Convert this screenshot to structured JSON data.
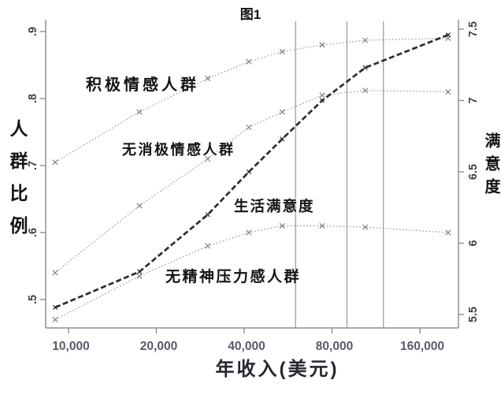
{
  "chart_data": {
    "type": "line",
    "title": "图1",
    "xlabel": "年收入(美元)",
    "ylabel_left": "人群比例",
    "ylabel_right": "满意度",
    "x_scale": "log2",
    "x": [
      9000,
      17500,
      30000,
      41500,
      54000,
      74000,
      104000,
      200000
    ],
    "xlim": [
      8350,
      217000
    ],
    "x_ticks": [
      10000,
      20000,
      40000,
      80000,
      160000
    ],
    "x_tick_labels": [
      "10,000",
      "20,000",
      "40,000",
      "80,000",
      "160,000"
    ],
    "left_ylim": [
      0.459,
      0.918
    ],
    "left_ticks": [
      0.5,
      0.6,
      0.7,
      0.8,
      0.9
    ],
    "left_tick_labels": [
      ".5",
      ".6",
      ".7",
      ".8",
      ".9"
    ],
    "right_ylim": [
      5.41,
      7.57
    ],
    "right_ticks": [
      5.5,
      6.0,
      6.5,
      7.0,
      7.5
    ],
    "right_tick_labels": [
      "5.5",
      "6",
      "6.5",
      "7",
      "7.5"
    ],
    "reference_lines_x": [
      60000,
      90000,
      120000
    ],
    "grid": "vertical-reference-lines-only",
    "legend": "inline-labels",
    "series": [
      {
        "name": "积极情感人群",
        "axis": "left",
        "style": "dotted",
        "values": [
          0.705,
          0.78,
          0.83,
          0.855,
          0.87,
          0.88,
          0.887,
          0.89
        ]
      },
      {
        "name": "无消极情感人群",
        "axis": "left",
        "style": "dotted",
        "values": [
          0.54,
          0.64,
          0.71,
          0.757,
          0.78,
          0.805,
          0.812,
          0.81
        ]
      },
      {
        "name": "无精神压力感人群",
        "axis": "left",
        "style": "dotted",
        "values": [
          0.47,
          0.535,
          0.58,
          0.6,
          0.61,
          0.61,
          0.608,
          0.6
        ]
      },
      {
        "name": "生活满意度",
        "axis": "right",
        "style": "bold-dashed",
        "values": [
          5.55,
          5.8,
          6.2,
          6.5,
          6.73,
          7.0,
          7.23,
          7.46
        ]
      }
    ],
    "colors": {
      "dotted_line": "#969696",
      "dotted_marker": "#808080",
      "bold_line": "#2d2d2d",
      "axis": "#8b9196",
      "reference_line": "#9aa0a4",
      "x_tick_text": "#565b68",
      "y_tick_text": "#3e434c",
      "annotation_text": "#141414"
    }
  }
}
